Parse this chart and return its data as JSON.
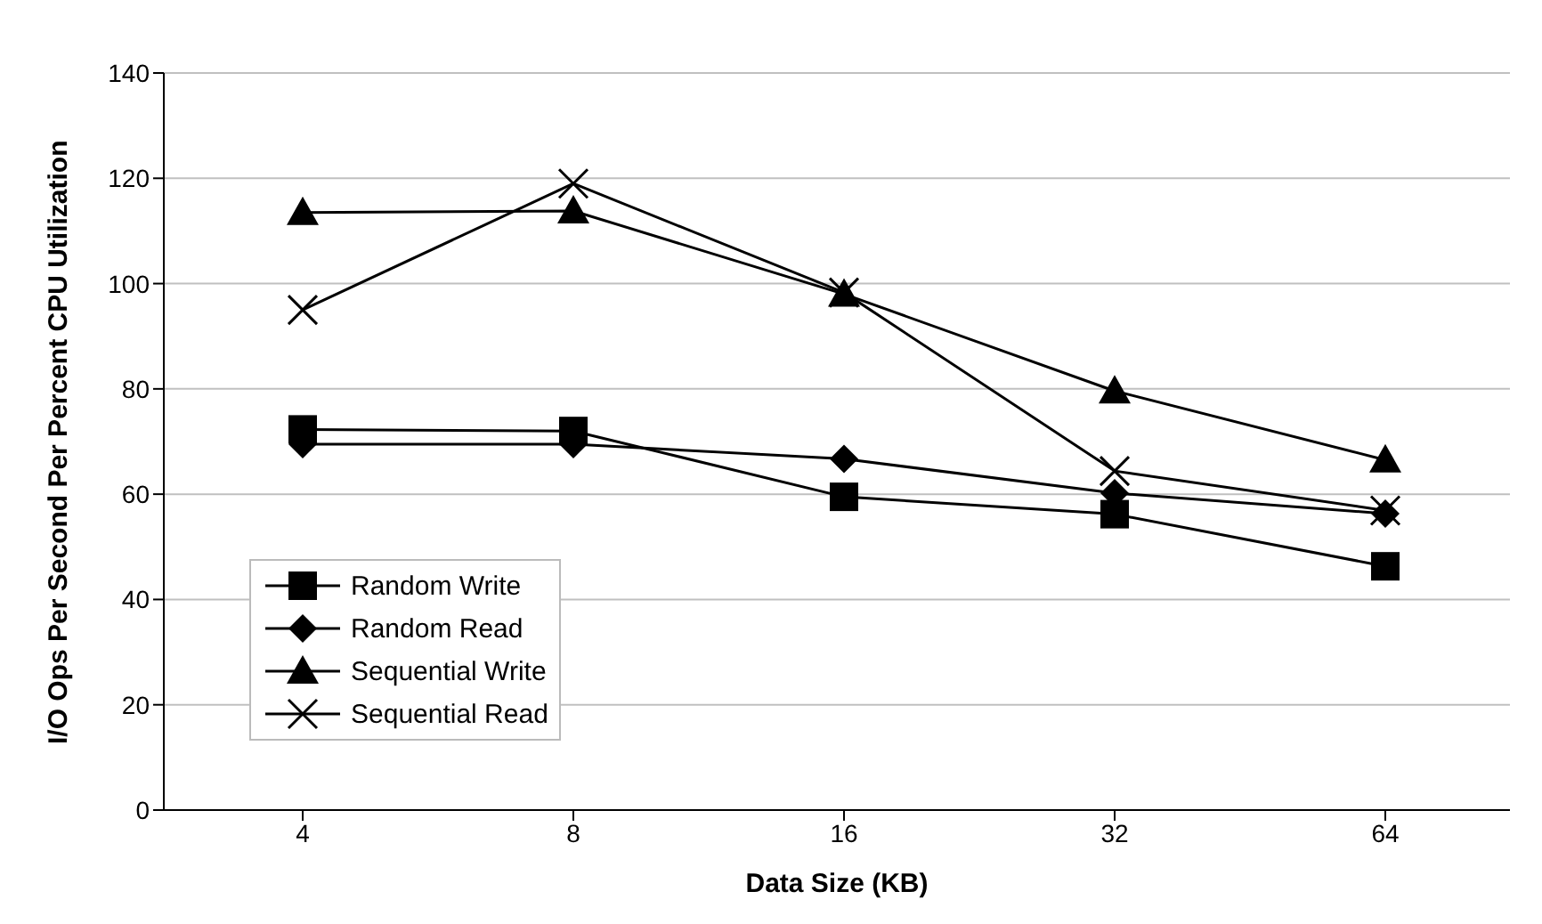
{
  "chart_data": {
    "type": "line",
    "xlabel": "Data Size (KB)",
    "ylabel": "I/O Ops Per Second Per Percent CPU Utilization",
    "categories": [
      "4",
      "8",
      "16",
      "32",
      "64"
    ],
    "series": [
      {
        "name": "Random Write",
        "color": "#000000",
        "marker": "square",
        "values": [
          72.3,
          72,
          59.5,
          56.2,
          46.3
        ]
      },
      {
        "name": "Random Read",
        "color": "#000000",
        "marker": "diamond",
        "values": [
          69.5,
          69.5,
          66.7,
          60.2,
          56.3
        ]
      },
      {
        "name": "Sequential Write",
        "color": "#000000",
        "marker": "triangle",
        "values": [
          113.5,
          113.8,
          98,
          79.6,
          66.5
        ]
      },
      {
        "name": "Sequential Read",
        "color": "#000000",
        "marker": "cross",
        "values": [
          95,
          119,
          98.3,
          64.4,
          56.9
        ]
      }
    ],
    "ylim": [
      0,
      140
    ],
    "yticks": [
      0,
      20,
      40,
      60,
      80,
      100,
      120,
      140
    ],
    "grid": "y",
    "legend": "bottom left",
    "line_style": "solid"
  }
}
